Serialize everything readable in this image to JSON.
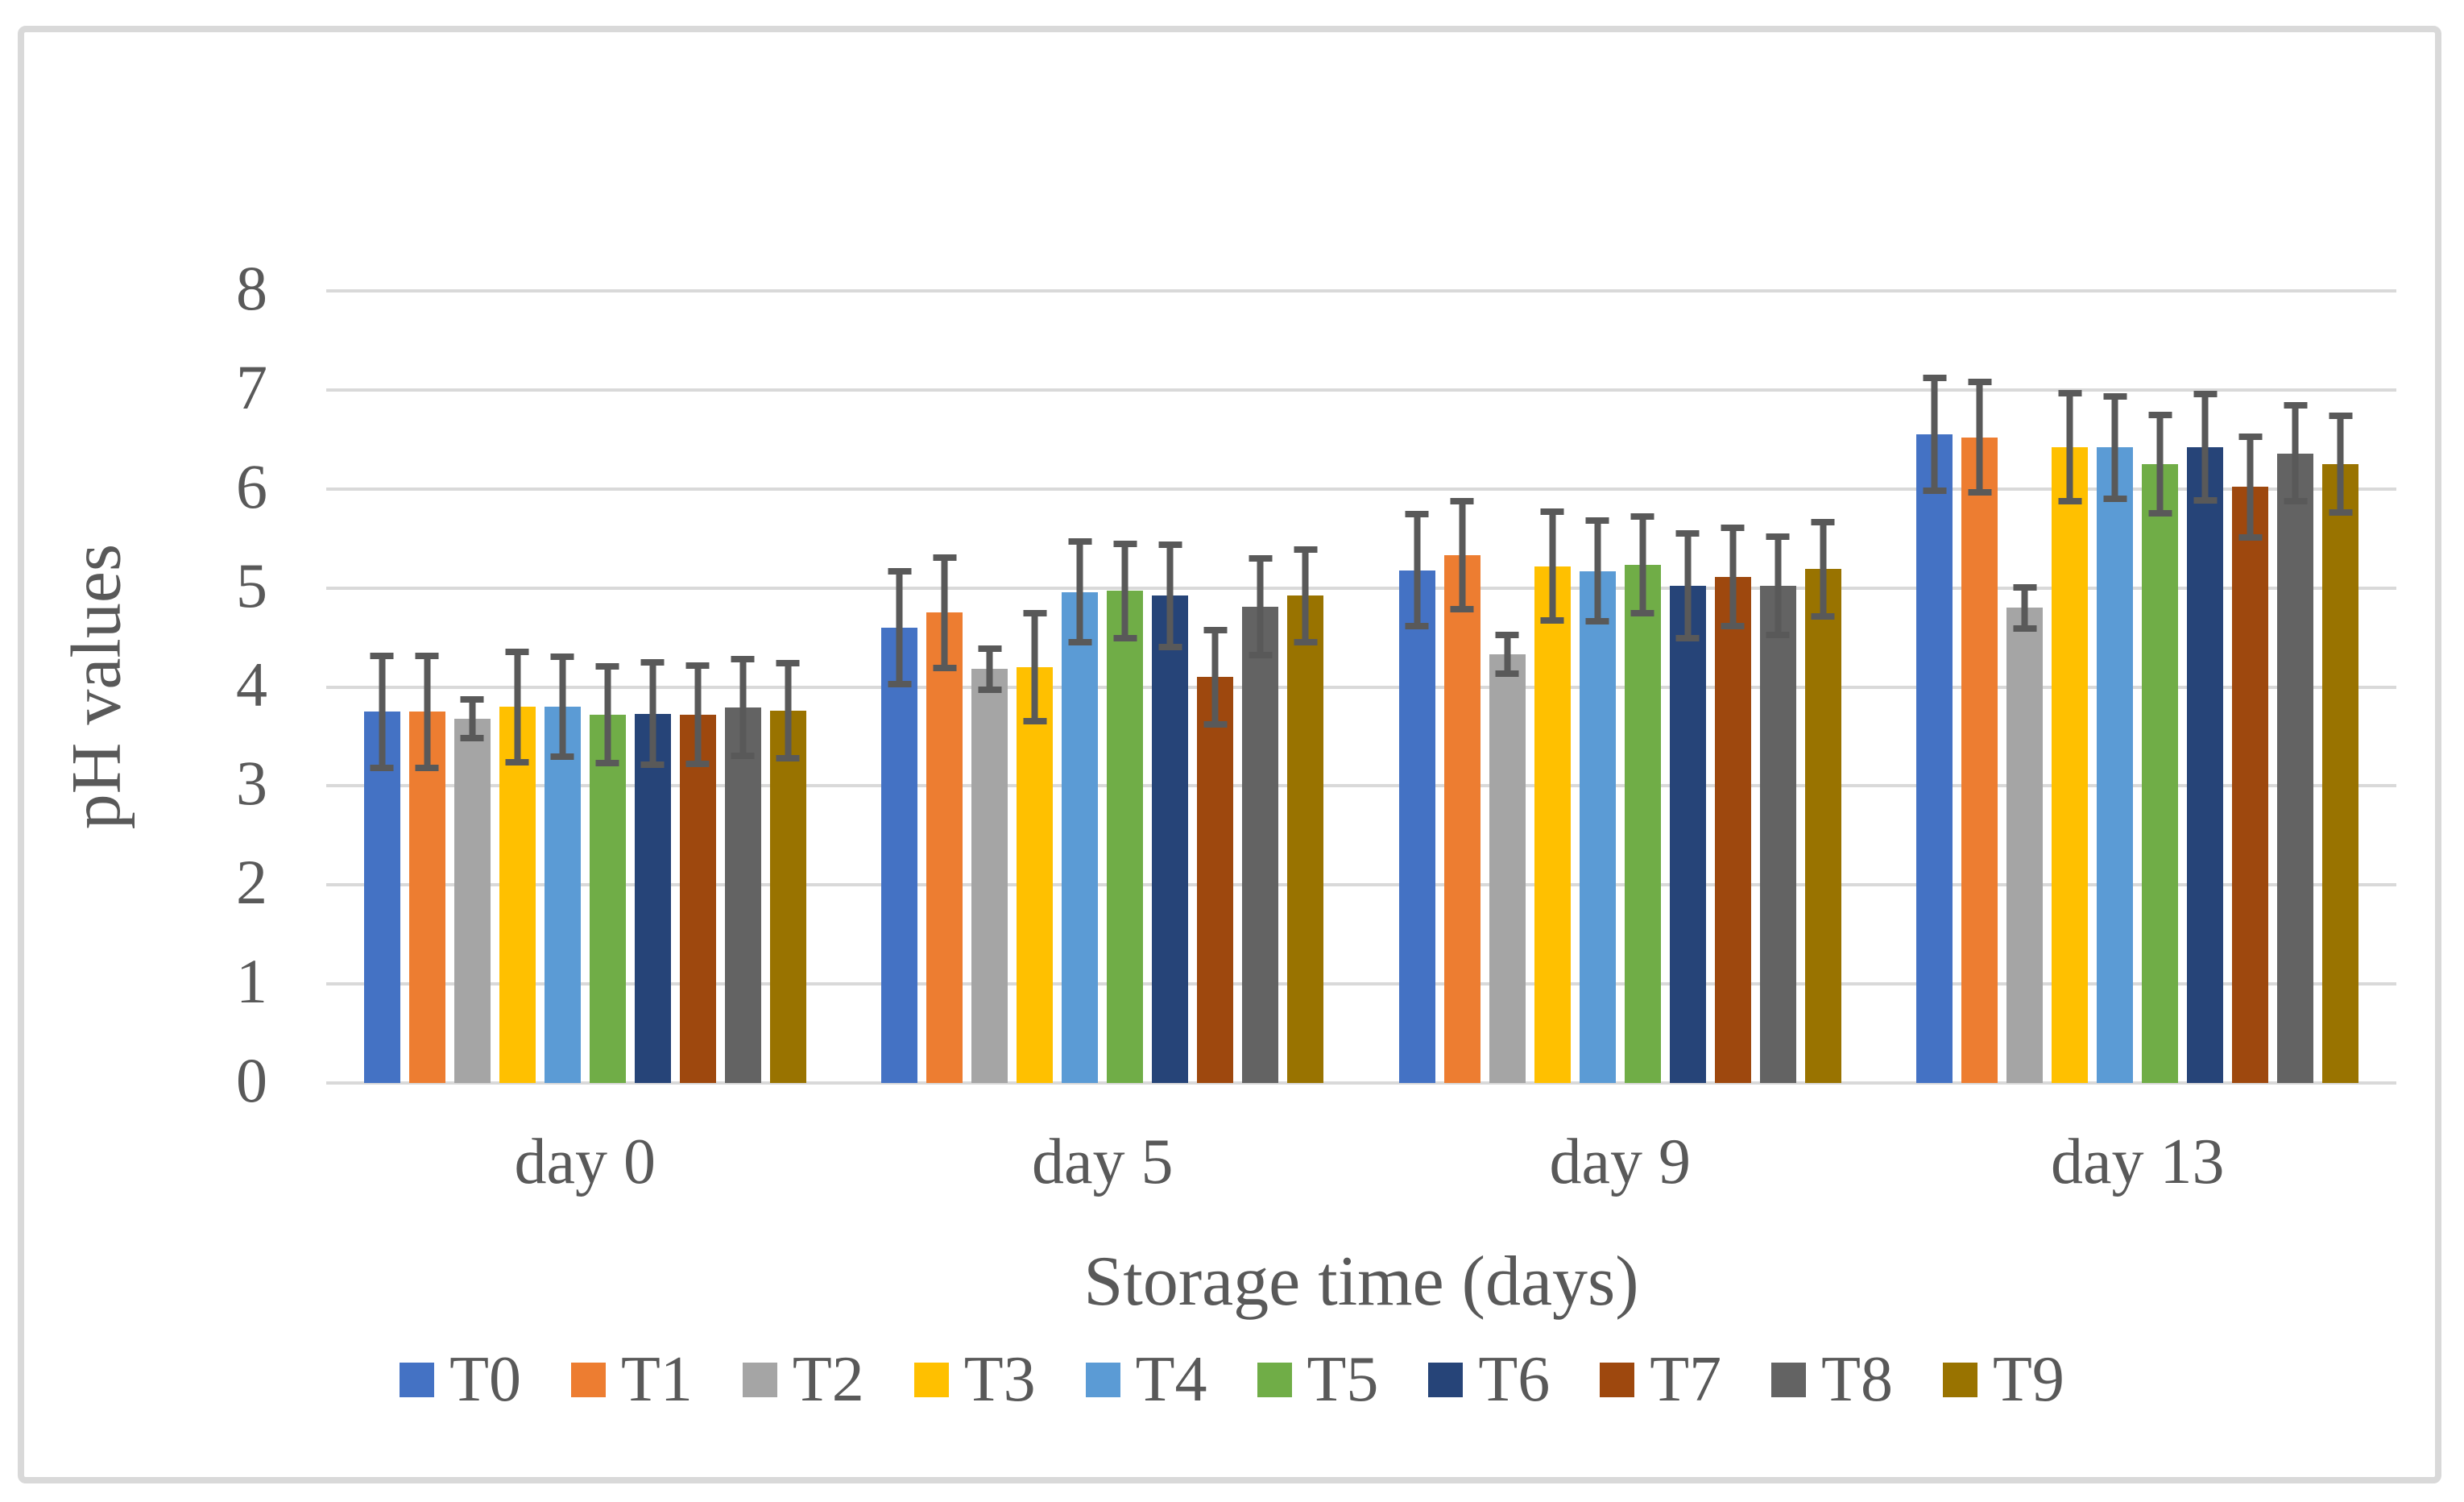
{
  "figure": {
    "background": "#FFFFFF",
    "border_color": "#D9D9D9"
  },
  "chart_data": {
    "type": "bar",
    "title": "",
    "xlabel": "Storage time (days)",
    "ylabel": "pH values",
    "ylim": [
      0,
      8
    ],
    "y_tick_step": 1,
    "y_ticks": [
      "0",
      "1",
      "2",
      "3",
      "4",
      "5",
      "6",
      "7",
      "8"
    ],
    "grid": true,
    "gridline_color": "#D9D9D9",
    "text_color": "#595959",
    "error_bar_color": "#595959",
    "legend_position": "bottom",
    "categories": [
      "day 0",
      "day 5",
      "day 9",
      "day 13"
    ],
    "series": [
      {
        "name": "T0",
        "color": "#4472C4",
        "values": [
          3.75,
          4.6,
          5.18,
          6.55
        ],
        "errors": [
          0.6,
          0.6,
          0.6,
          0.6
        ]
      },
      {
        "name": "T1",
        "color": "#ED7D31",
        "values": [
          3.75,
          4.75,
          5.33,
          6.52
        ],
        "errors": [
          0.6,
          0.59,
          0.58,
          0.59
        ]
      },
      {
        "name": "T2",
        "color": "#A5A5A5",
        "values": [
          3.68,
          4.18,
          4.33,
          4.8
        ],
        "errors": [
          0.23,
          0.24,
          0.23,
          0.24
        ]
      },
      {
        "name": "T3",
        "color": "#FFC000",
        "values": [
          3.8,
          4.2,
          5.22,
          6.42
        ],
        "errors": [
          0.59,
          0.58,
          0.58,
          0.58
        ]
      },
      {
        "name": "T4",
        "color": "#5B9BD5",
        "values": [
          3.8,
          4.96,
          5.17,
          6.42
        ],
        "errors": [
          0.54,
          0.54,
          0.54,
          0.55
        ]
      },
      {
        "name": "T5",
        "color": "#70AD47",
        "values": [
          3.72,
          4.97,
          5.23,
          6.25
        ],
        "errors": [
          0.52,
          0.51,
          0.52,
          0.53
        ]
      },
      {
        "name": "T6",
        "color": "#264478",
        "values": [
          3.73,
          4.92,
          5.02,
          6.42
        ],
        "errors": [
          0.55,
          0.55,
          0.56,
          0.57
        ]
      },
      {
        "name": "T7",
        "color": "#9E480E",
        "values": [
          3.72,
          4.1,
          5.11,
          6.02
        ],
        "errors": [
          0.53,
          0.51,
          0.53,
          0.54
        ]
      },
      {
        "name": "T8",
        "color": "#636363",
        "values": [
          3.79,
          4.81,
          5.02,
          6.36
        ],
        "errors": [
          0.52,
          0.52,
          0.53,
          0.52
        ]
      },
      {
        "name": "T9",
        "color": "#997300",
        "values": [
          3.76,
          4.92,
          5.19,
          6.25
        ],
        "errors": [
          0.51,
          0.5,
          0.51,
          0.52
        ]
      }
    ]
  }
}
